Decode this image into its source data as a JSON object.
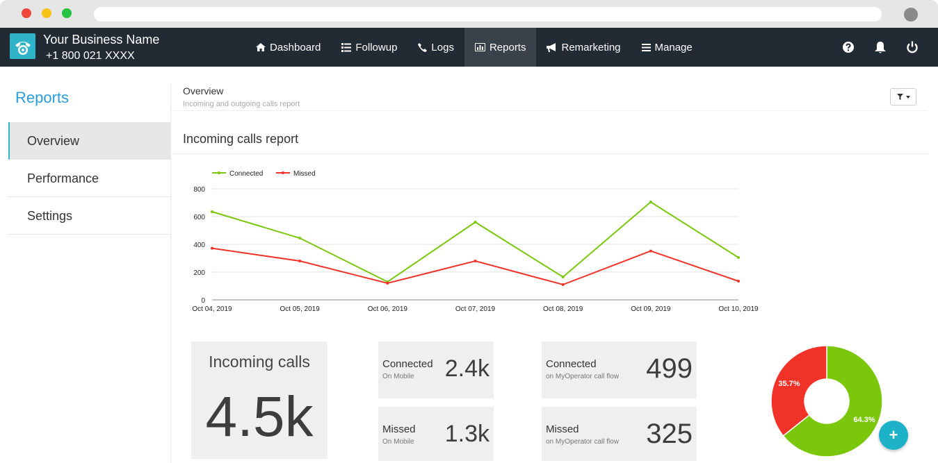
{
  "brand": {
    "business_name": "Your Business Name",
    "phone": "+1 800 021 XXXX"
  },
  "nav": {
    "items": [
      {
        "label": "Dashboard",
        "icon": "home-icon"
      },
      {
        "label": "Followup",
        "icon": "list-icon"
      },
      {
        "label": "Logs",
        "icon": "phone-icon"
      },
      {
        "label": "Reports",
        "icon": "bar-chart-icon",
        "active": true
      },
      {
        "label": "Remarketing",
        "icon": "megaphone-icon"
      },
      {
        "label": "Manage",
        "icon": "menu-icon"
      }
    ],
    "right_icons": [
      "help-icon",
      "bell-icon",
      "power-icon"
    ]
  },
  "sidebar": {
    "title": "Reports",
    "items": [
      {
        "label": "Overview",
        "active": true
      },
      {
        "label": "Performance"
      },
      {
        "label": "Settings"
      }
    ]
  },
  "main": {
    "title": "Overview",
    "subtitle": "Incoming and outgoing calls report",
    "section_title": "Incoming calls report"
  },
  "stats": {
    "incoming_label": "Incoming calls",
    "incoming_value": "4.5k",
    "connected_mobile": {
      "label": "Connected",
      "sub": "On Mobile",
      "value": "2.4k"
    },
    "missed_mobile": {
      "label": "Missed",
      "sub": "On Mobile",
      "value": "1.3k"
    },
    "connected_flow": {
      "label": "Connected",
      "sub": "on MyOperator call flow",
      "value": "499"
    },
    "missed_flow": {
      "label": "Missed",
      "sub": "on MyOperator call flow",
      "value": "325"
    }
  },
  "colors": {
    "connected": "#7ac70c",
    "missed": "#f03228",
    "accent": "#2fb3c9",
    "nav_bg": "#222a33"
  },
  "chart_data": [
    {
      "type": "line",
      "x": [
        "Oct 04, 2019",
        "Oct 05, 2019",
        "Oct 06, 2019",
        "Oct 07, 2019",
        "Oct 08, 2019",
        "Oct 09, 2019",
        "Oct 10, 2019"
      ],
      "series": [
        {
          "name": "Connected",
          "values": [
            635,
            445,
            130,
            560,
            165,
            705,
            305
          ]
        },
        {
          "name": "Missed",
          "values": [
            372,
            280,
            120,
            280,
            110,
            352,
            135
          ]
        }
      ],
      "yticks": [
        "0",
        "200",
        "400",
        "600",
        "800"
      ],
      "ylim": [
        0,
        800
      ],
      "grid": true,
      "legend": "top-left"
    },
    {
      "type": "pie",
      "labels": [
        "35.7%",
        "64.3%"
      ],
      "values": [
        35.7,
        64.3
      ]
    }
  ]
}
